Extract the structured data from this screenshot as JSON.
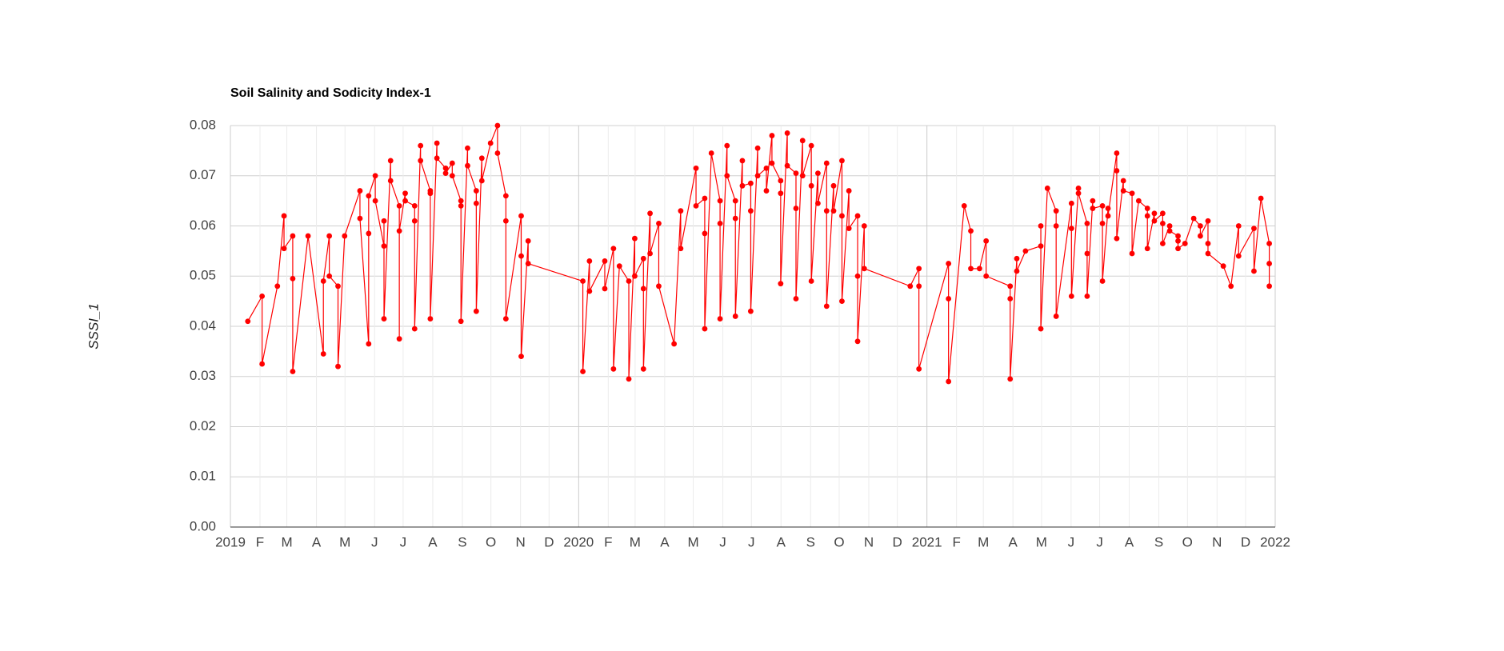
{
  "chart_data": {
    "type": "line",
    "title": "Soil Salinity and Sodicity Index-1",
    "ylabel": "SSSI_1",
    "color": "#ff0000",
    "grid": true,
    "x": [
      2019.05,
      2019.091,
      2019.091,
      2019.135,
      2019.154,
      2019.154,
      2019.179,
      2019.179,
      2019.179,
      2019.223,
      2019.267,
      2019.267,
      2019.284,
      2019.284,
      2019.309,
      2019.309,
      2019.328,
      2019.372,
      2019.372,
      2019.397,
      2019.397,
      2019.397,
      2019.416,
      2019.416,
      2019.441,
      2019.441,
      2019.441,
      2019.46,
      2019.46,
      2019.485,
      2019.485,
      2019.485,
      2019.502,
      2019.502,
      2019.529,
      2019.529,
      2019.529,
      2019.546,
      2019.546,
      2019.574,
      2019.574,
      2019.574,
      2019.593,
      2019.593,
      2019.618,
      2019.618,
      2019.637,
      2019.637,
      2019.662,
      2019.662,
      2019.662,
      2019.681,
      2019.681,
      2019.706,
      2019.706,
      2019.706,
      2019.722,
      2019.722,
      2019.747,
      2019.767,
      2019.767,
      2019.791,
      2019.791,
      2019.791,
      2019.835,
      2019.835,
      2019.835,
      2019.855,
      2019.855,
      2020.012,
      2020.012,
      2020.031,
      2020.031,
      2020.075,
      2020.075,
      2020.1,
      2020.1,
      2020.117,
      2020.144,
      2020.144,
      2020.161,
      2020.161,
      2020.186,
      2020.186,
      2020.186,
      2020.205,
      2020.205,
      2020.23,
      2020.23,
      2020.274,
      2020.293,
      2020.293,
      2020.337,
      2020.337,
      2020.362,
      2020.362,
      2020.362,
      2020.381,
      2020.406,
      2020.406,
      2020.406,
      2020.426,
      2020.426,
      2020.45,
      2020.45,
      2020.45,
      2020.47,
      2020.47,
      2020.494,
      2020.494,
      2020.494,
      2020.514,
      2020.514,
      2020.539,
      2020.539,
      2020.555,
      2020.555,
      2020.58,
      2020.58,
      2020.58,
      2020.599,
      2020.599,
      2020.624,
      2020.624,
      2020.624,
      2020.643,
      2020.643,
      2020.668,
      2020.668,
      2020.668,
      2020.687,
      2020.687,
      2020.712,
      2020.712,
      2020.712,
      2020.732,
      2020.732,
      2020.756,
      2020.756,
      2020.756,
      2020.776,
      2020.776,
      2020.801,
      2020.801,
      2020.801,
      2020.82,
      2020.82,
      2020.952,
      2020.977,
      2020.977,
      2020.977,
      2021.062,
      2021.062,
      2021.062,
      2021.107,
      2021.126,
      2021.126,
      2021.151,
      2021.17,
      2021.17,
      2021.239,
      2021.239,
      2021.239,
      2021.258,
      2021.258,
      2021.283,
      2021.327,
      2021.327,
      2021.327,
      2021.346,
      2021.371,
      2021.371,
      2021.371,
      2021.415,
      2021.415,
      2021.415,
      2021.435,
      2021.435,
      2021.46,
      2021.46,
      2021.46,
      2021.476,
      2021.476,
      2021.504,
      2021.504,
      2021.504,
      2021.52,
      2021.52,
      2021.545,
      2021.545,
      2021.545,
      2021.564,
      2021.564,
      2021.589,
      2021.589,
      2021.608,
      2021.633,
      2021.633,
      2021.633,
      2021.653,
      2021.653,
      2021.677,
      2021.677,
      2021.677,
      2021.697,
      2021.697,
      2021.721,
      2021.721,
      2021.721,
      2021.741,
      2021.766,
      2021.785,
      2021.785,
      2021.807,
      2021.807,
      2021.807,
      2021.851,
      2021.873,
      2021.895,
      2021.895,
      2021.939,
      2021.939,
      2021.959,
      2021.983,
      2021.983,
      2021.983
    ],
    "values": [
      0.041,
      0.046,
      0.0325,
      0.048,
      0.062,
      0.0555,
      0.058,
      0.0495,
      0.031,
      0.058,
      0.0345,
      0.049,
      0.058,
      0.05,
      0.048,
      0.032,
      0.058,
      0.067,
      0.0615,
      0.0365,
      0.0585,
      0.066,
      0.07,
      0.065,
      0.056,
      0.061,
      0.0415,
      0.073,
      0.069,
      0.064,
      0.0375,
      0.059,
      0.0665,
      0.065,
      0.064,
      0.061,
      0.0395,
      0.076,
      0.073,
      0.067,
      0.0665,
      0.0415,
      0.0765,
      0.0735,
      0.0715,
      0.0705,
      0.0725,
      0.07,
      0.065,
      0.064,
      0.041,
      0.0755,
      0.072,
      0.067,
      0.0645,
      0.043,
      0.0735,
      0.069,
      0.0765,
      0.08,
      0.0745,
      0.066,
      0.061,
      0.0415,
      0.062,
      0.054,
      0.034,
      0.057,
      0.0525,
      0.049,
      0.031,
      0.053,
      0.047,
      0.053,
      0.0475,
      0.0555,
      0.0315,
      0.052,
      0.049,
      0.0295,
      0.0575,
      0.05,
      0.0535,
      0.0475,
      0.0315,
      0.0625,
      0.0545,
      0.0605,
      0.048,
      0.0365,
      0.063,
      0.0555,
      0.0715,
      0.064,
      0.0655,
      0.0585,
      0.0395,
      0.0745,
      0.065,
      0.0605,
      0.0415,
      0.076,
      0.07,
      0.065,
      0.0615,
      0.042,
      0.073,
      0.068,
      0.0685,
      0.063,
      0.043,
      0.0755,
      0.07,
      0.0715,
      0.067,
      0.078,
      0.0725,
      0.069,
      0.0665,
      0.0485,
      0.0785,
      0.072,
      0.0705,
      0.0635,
      0.0455,
      0.077,
      0.07,
      0.076,
      0.068,
      0.049,
      0.0705,
      0.0645,
      0.0725,
      0.063,
      0.044,
      0.068,
      0.063,
      0.073,
      0.062,
      0.045,
      0.067,
      0.0595,
      0.062,
      0.05,
      0.037,
      0.06,
      0.0515,
      0.048,
      0.0515,
      0.048,
      0.0315,
      0.0525,
      0.0455,
      0.029,
      0.064,
      0.059,
      0.0515,
      0.0515,
      0.057,
      0.05,
      0.048,
      0.0455,
      0.0295,
      0.0535,
      0.051,
      0.055,
      0.056,
      0.06,
      0.0395,
      0.0675,
      0.063,
      0.06,
      0.042,
      0.0645,
      0.0595,
      0.046,
      0.0675,
      0.0665,
      0.0605,
      0.0545,
      0.046,
      0.065,
      0.0635,
      0.064,
      0.0605,
      0.049,
      0.0635,
      0.062,
      0.0745,
      0.071,
      0.0575,
      0.069,
      0.067,
      0.0665,
      0.0545,
      0.065,
      0.0635,
      0.062,
      0.0555,
      0.0625,
      0.061,
      0.0625,
      0.0605,
      0.0565,
      0.06,
      0.059,
      0.058,
      0.057,
      0.0555,
      0.0565,
      0.0615,
      0.06,
      0.058,
      0.061,
      0.0565,
      0.0545,
      0.052,
      0.048,
      0.06,
      0.054,
      0.0595,
      0.051,
      0.0655,
      0.0565,
      0.0525,
      0.048
    ],
    "xlim": [
      2019,
      2022
    ],
    "xticks": [
      2019,
      {
        "value": 2019.085,
        "label": "F"
      },
      {
        "value": 2019.162,
        "label": "M"
      },
      {
        "value": 2019.247,
        "label": "A"
      },
      {
        "value": 2019.329,
        "label": "M"
      },
      {
        "value": 2019.414,
        "label": "J"
      },
      {
        "value": 2019.496,
        "label": "J"
      },
      {
        "value": 2019.581,
        "label": "A"
      },
      {
        "value": 2019.666,
        "label": "S"
      },
      {
        "value": 2019.748,
        "label": "O"
      },
      {
        "value": 2019.833,
        "label": "N"
      },
      {
        "value": 2019.915,
        "label": "D"
      },
      2020,
      {
        "value": 2020.085,
        "label": "F"
      },
      {
        "value": 2020.162,
        "label": "M"
      },
      {
        "value": 2020.247,
        "label": "A"
      },
      {
        "value": 2020.329,
        "label": "M"
      },
      {
        "value": 2020.414,
        "label": "J"
      },
      {
        "value": 2020.496,
        "label": "J"
      },
      {
        "value": 2020.581,
        "label": "A"
      },
      {
        "value": 2020.666,
        "label": "S"
      },
      {
        "value": 2020.748,
        "label": "O"
      },
      {
        "value": 2020.833,
        "label": "N"
      },
      {
        "value": 2020.915,
        "label": "D"
      },
      2021,
      {
        "value": 2021.085,
        "label": "F"
      },
      {
        "value": 2021.162,
        "label": "M"
      },
      {
        "value": 2021.247,
        "label": "A"
      },
      {
        "value": 2021.329,
        "label": "M"
      },
      {
        "value": 2021.414,
        "label": "J"
      },
      {
        "value": 2021.496,
        "label": "J"
      },
      {
        "value": 2021.581,
        "label": "A"
      },
      {
        "value": 2021.666,
        "label": "S"
      },
      {
        "value": 2021.748,
        "label": "O"
      },
      {
        "value": 2021.833,
        "label": "N"
      },
      {
        "value": 2021.915,
        "label": "D"
      },
      2022
    ],
    "ylim": [
      0,
      0.08
    ],
    "yticks": [
      {
        "value": 0,
        "label": "0.00"
      },
      0.01,
      0.02,
      0.03,
      0.04,
      0.05,
      0.06,
      0.07,
      0.08
    ]
  }
}
